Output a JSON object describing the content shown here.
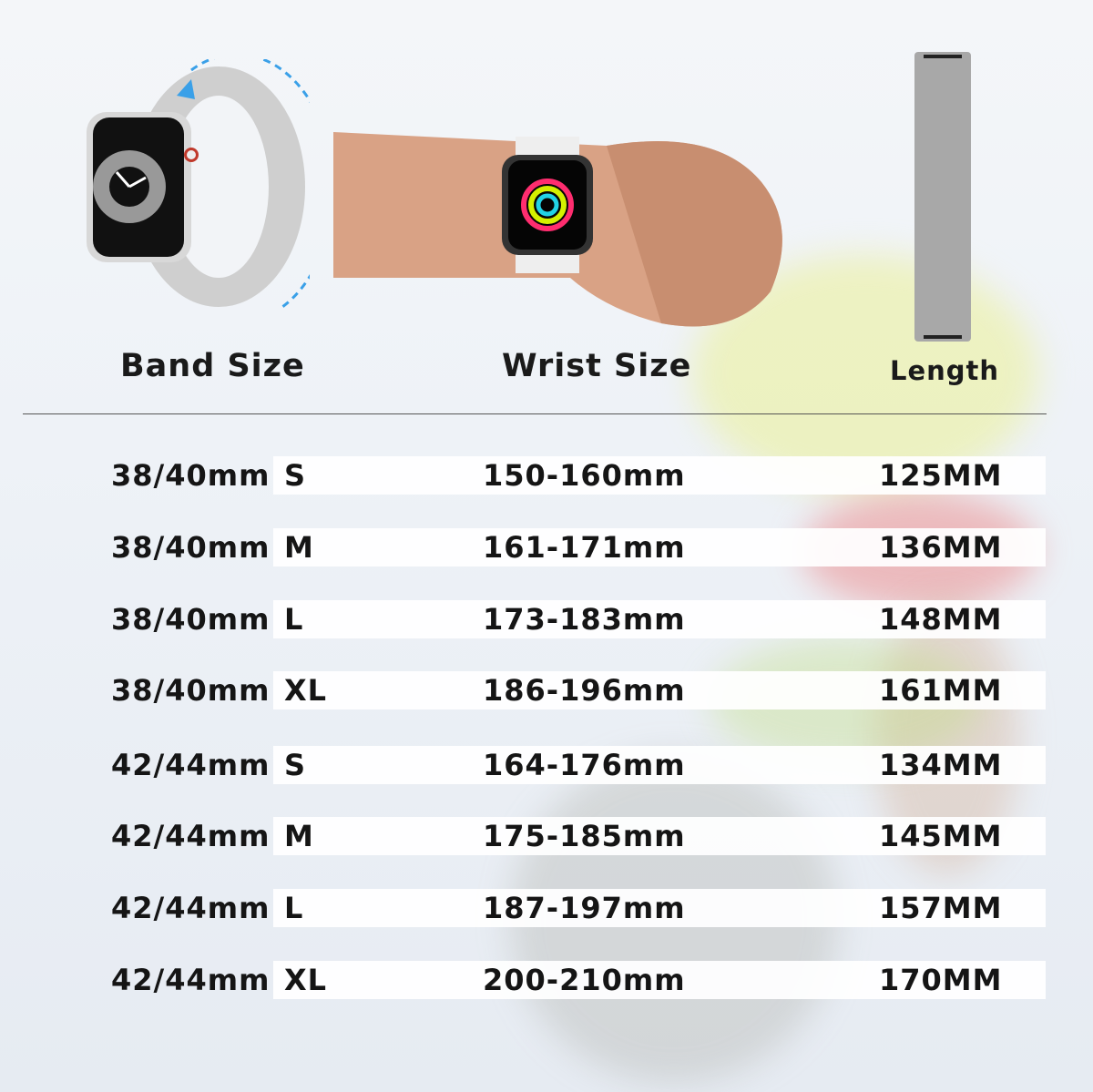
{
  "headers": {
    "band_size": "Band Size",
    "wrist_size": "Wrist Size",
    "length": "Length"
  },
  "colors": {
    "band": "#c9c9c9",
    "arrow": "#3aa0e8",
    "text": "#151515",
    "row_bg": "#ffffff"
  },
  "rows": [
    {
      "band": "38/40mm",
      "size": "S",
      "wrist": "150-160mm",
      "length": "125MM"
    },
    {
      "band": "38/40mm",
      "size": "M",
      "wrist": "161-171mm",
      "length": "136MM"
    },
    {
      "band": "38/40mm",
      "size": "L",
      "wrist": "173-183mm",
      "length": "148MM"
    },
    {
      "band": "38/40mm",
      "size": "XL",
      "wrist": "186-196mm",
      "length": "161MM"
    },
    {
      "band": "42/44mm",
      "size": "S",
      "wrist": "164-176mm",
      "length": "134MM"
    },
    {
      "band": "42/44mm",
      "size": "M",
      "wrist": "175-185mm",
      "length": "145MM"
    },
    {
      "band": "42/44mm",
      "size": "L",
      "wrist": "187-197mm",
      "length": "157MM"
    },
    {
      "band": "42/44mm",
      "size": "XL",
      "wrist": "200-210mm",
      "length": "170MM"
    }
  ]
}
